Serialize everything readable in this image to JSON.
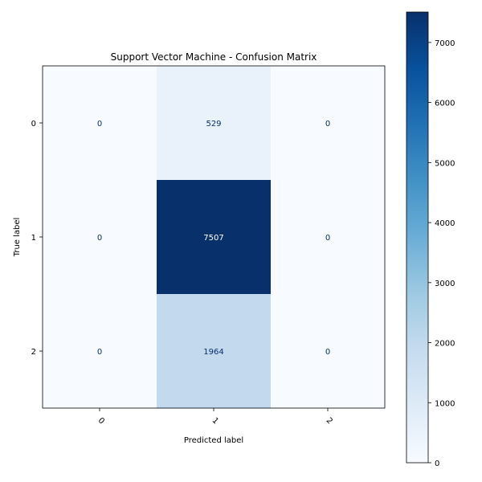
{
  "chart_data": {
    "type": "heatmap",
    "title": "Support Vector Machine - Confusion Matrix",
    "xlabel": "Predicted label",
    "ylabel": "True label",
    "x_categories": [
      "0",
      "1",
      "2"
    ],
    "y_categories": [
      "0",
      "1",
      "2"
    ],
    "values": [
      [
        0,
        529,
        0
      ],
      [
        0,
        7507,
        0
      ],
      [
        0,
        1964,
        0
      ]
    ],
    "value_labels": [
      [
        "0",
        "529",
        "0"
      ],
      [
        "0",
        "7507",
        "0"
      ],
      [
        "0",
        "1964",
        "0"
      ]
    ],
    "colormap": "Blues",
    "color_range": [
      0,
      7507
    ],
    "colorbar_ticks": [
      0,
      1000,
      2000,
      3000,
      4000,
      5000,
      6000,
      7000
    ],
    "colorbar_tick_labels": [
      "0",
      "1000",
      "2000",
      "3000",
      "4000",
      "5000",
      "6000",
      "7000"
    ],
    "grid": false
  }
}
